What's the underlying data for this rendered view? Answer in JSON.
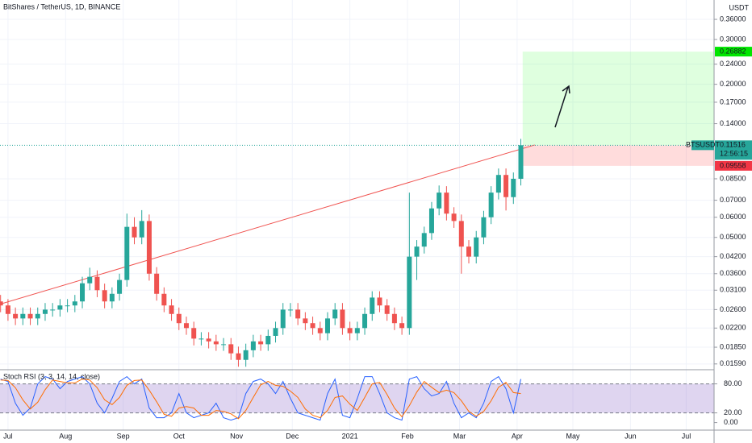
{
  "chart_data": {
    "type": "candlestick",
    "title": "BitShares / TetherUS, 1D, BINANCE",
    "y_unit": "USDT",
    "log_scale": true,
    "grid": true,
    "up_color": "#26a69a",
    "down_color": "#ef5350",
    "x": [
      -4,
      0,
      4,
      8,
      12,
      16,
      20,
      24,
      28,
      32,
      36,
      40,
      44,
      48,
      52,
      56,
      60,
      64,
      68,
      72,
      76,
      80,
      84,
      88,
      92,
      96,
      100,
      104,
      108,
      112,
      116,
      120,
      124,
      128,
      132,
      136,
      140,
      144,
      148,
      152,
      156,
      160,
      164,
      168,
      172,
      176,
      180,
      184,
      188,
      192,
      196,
      200,
      204,
      208,
      212,
      216,
      220,
      224,
      228,
      232,
      236,
      240,
      244,
      248,
      252,
      256,
      260,
      264,
      268,
      272,
      276
    ],
    "open": [
      0.028,
      0.027,
      0.025,
      0.024,
      0.025,
      0.024,
      0.025,
      0.026,
      0.026,
      0.027,
      0.027,
      0.028,
      0.033,
      0.035,
      0.031,
      0.028,
      0.03,
      0.034,
      0.055,
      0.05,
      0.058,
      0.036,
      0.03,
      0.027,
      0.025,
      0.023,
      0.022,
      0.02,
      0.02,
      0.0195,
      0.019,
      0.019,
      0.0175,
      0.0165,
      0.018,
      0.0195,
      0.019,
      0.0205,
      0.022,
      0.026,
      0.026,
      0.024,
      0.023,
      0.022,
      0.021,
      0.024,
      0.026,
      0.022,
      0.021,
      0.022,
      0.025,
      0.029,
      0.027,
      0.025,
      0.023,
      0.022,
      0.042,
      0.046,
      0.052,
      0.065,
      0.075,
      0.062,
      0.058,
      0.046,
      0.042,
      0.05,
      0.06,
      0.075,
      0.088,
      0.072,
      0.085
    ],
    "high": [
      0.0297,
      0.0286,
      0.0265,
      0.0265,
      0.0265,
      0.0265,
      0.0276,
      0.0276,
      0.0286,
      0.0286,
      0.0297,
      0.035,
      0.038,
      0.0371,
      0.0329,
      0.0318,
      0.036,
      0.062,
      0.06,
      0.064,
      0.0615,
      0.0382,
      0.0318,
      0.0286,
      0.0265,
      0.0244,
      0.0233,
      0.0212,
      0.0212,
      0.0207,
      0.0201,
      0.0201,
      0.0186,
      0.0191,
      0.0207,
      0.0207,
      0.0217,
      0.0233,
      0.0276,
      0.0276,
      0.0276,
      0.0254,
      0.0244,
      0.0233,
      0.0254,
      0.0276,
      0.0276,
      0.0233,
      0.0233,
      0.0265,
      0.0307,
      0.0307,
      0.0286,
      0.0265,
      0.0244,
      0.075,
      0.0488,
      0.0551,
      0.0689,
      0.08,
      0.0795,
      0.0657,
      0.0615,
      0.0488,
      0.053,
      0.0636,
      0.0795,
      0.0933,
      0.0933,
      0.09,
      0.122
    ],
    "low": [
      0.0254,
      0.0235,
      0.0226,
      0.0226,
      0.0226,
      0.0226,
      0.0235,
      0.0244,
      0.0244,
      0.0254,
      0.0254,
      0.0263,
      0.031,
      0.0291,
      0.0263,
      0.0263,
      0.0282,
      0.032,
      0.047,
      0.047,
      0.0338,
      0.0282,
      0.0254,
      0.0235,
      0.0216,
      0.0207,
      0.0188,
      0.0188,
      0.0183,
      0.0179,
      0.0179,
      0.0165,
      0.0155,
      0.0155,
      0.0169,
      0.0179,
      0.0179,
      0.0193,
      0.0207,
      0.0244,
      0.0226,
      0.0216,
      0.0207,
      0.0197,
      0.0197,
      0.0226,
      0.0207,
      0.0197,
      0.0197,
      0.0207,
      0.0235,
      0.0254,
      0.0235,
      0.0216,
      0.0207,
      0.0207,
      0.034,
      0.0432,
      0.0489,
      0.0611,
      0.0583,
      0.0545,
      0.036,
      0.0395,
      0.0395,
      0.047,
      0.0564,
      0.0705,
      0.0638,
      0.0677,
      0.08
    ],
    "close": [
      0.027,
      0.025,
      0.024,
      0.025,
      0.024,
      0.025,
      0.026,
      0.026,
      0.027,
      0.027,
      0.028,
      0.033,
      0.035,
      0.031,
      0.028,
      0.03,
      0.034,
      0.055,
      0.05,
      0.058,
      0.036,
      0.03,
      0.027,
      0.025,
      0.023,
      0.022,
      0.02,
      0.02,
      0.0195,
      0.019,
      0.019,
      0.0175,
      0.0165,
      0.018,
      0.0195,
      0.019,
      0.0205,
      0.022,
      0.026,
      0.026,
      0.024,
      0.023,
      0.022,
      0.021,
      0.024,
      0.026,
      0.022,
      0.021,
      0.022,
      0.025,
      0.029,
      0.027,
      0.025,
      0.023,
      0.022,
      0.042,
      0.046,
      0.052,
      0.065,
      0.075,
      0.062,
      0.058,
      0.046,
      0.042,
      0.05,
      0.06,
      0.075,
      0.088,
      0.072,
      0.085,
      0.1152
    ],
    "xlim": [
      -4.3,
      380
    ],
    "xticks": [
      {
        "value": 0,
        "label": "Jul"
      },
      {
        "value": 31,
        "label": "Aug"
      },
      {
        "value": 62,
        "label": "Sep"
      },
      {
        "value": 92,
        "label": "Oct"
      },
      {
        "value": 123,
        "label": "Nov"
      },
      {
        "value": 153,
        "label": "Dec"
      },
      {
        "value": 184,
        "label": "2021"
      },
      {
        "value": 215,
        "label": "Feb"
      },
      {
        "value": 243,
        "label": "Mar"
      },
      {
        "value": 274,
        "label": "Apr"
      },
      {
        "value": 304,
        "label": "May"
      },
      {
        "value": 335,
        "label": "Jun"
      },
      {
        "value": 365,
        "label": "Jul"
      }
    ],
    "ylim": [
      0.0152,
      0.429
    ],
    "yticks": [
      {
        "value": 0.36,
        "label": "0.36000"
      },
      {
        "value": 0.3,
        "label": "0.30000"
      },
      {
        "value": 0.24,
        "label": "0.24000"
      },
      {
        "value": 0.2,
        "label": "0.20000"
      },
      {
        "value": 0.17,
        "label": "0.17000"
      },
      {
        "value": 0.14,
        "label": "0.14000"
      },
      {
        "value": 0.085,
        "label": "0.08500"
      },
      {
        "value": 0.07,
        "label": "0.07000"
      },
      {
        "value": 0.06,
        "label": "0.06000"
      },
      {
        "value": 0.05,
        "label": "0.05000"
      },
      {
        "value": 0.042,
        "label": "0.04200"
      },
      {
        "value": 0.036,
        "label": "0.03600"
      },
      {
        "value": 0.031,
        "label": "0.03100"
      },
      {
        "value": 0.026,
        "label": "0.02600"
      },
      {
        "value": 0.022,
        "label": "0.02200"
      },
      {
        "value": 0.0185,
        "label": "0.01850"
      },
      {
        "value": 0.0159,
        "label": "0.01590"
      }
    ],
    "trendline": {
      "x": [
        -4.3,
        283.5
      ],
      "y": [
        0.0273,
        0.1155
      ],
      "color": "#f05350"
    },
    "position": {
      "x": [
        277,
        380
      ],
      "entry": 0.11516,
      "target": 0.26882,
      "stop": 0.09558
    },
    "last_price": {
      "symbol": "BTSUSDT",
      "value": 0.11516,
      "countdown": "12:56:15",
      "color": "#26a69a"
    },
    "levels": [
      0.11432
    ],
    "indicator": {
      "type": "line",
      "title": "Stoch RSI (3, 3, 14, 14, close)",
      "ylim": [
        -14,
        106
      ],
      "yticks": [
        {
          "value": 0,
          "label": "0.00"
        },
        {
          "value": 20,
          "label": "20.00"
        },
        {
          "value": 80,
          "label": "80.00"
        }
      ],
      "band": [
        20,
        80
      ],
      "series": [
        {
          "color": "#2962ff",
          "values": [
            90,
            85,
            40,
            15,
            30,
            80,
            95,
            90,
            70,
            85,
            90,
            95,
            80,
            40,
            20,
            50,
            85,
            95,
            80,
            90,
            30,
            10,
            10,
            20,
            60,
            20,
            10,
            15,
            20,
            40,
            10,
            5,
            10,
            60,
            85,
            90,
            80,
            60,
            85,
            50,
            20,
            15,
            10,
            5,
            60,
            90,
            15,
            10,
            50,
            95,
            95,
            60,
            20,
            10,
            5,
            90,
            95,
            70,
            55,
            60,
            85,
            40,
            10,
            20,
            10,
            40,
            85,
            95,
            70,
            20,
            90
          ]
        },
        {
          "color": "#ff6d00",
          "values": [
            88,
            87,
            72,
            47,
            28,
            42,
            68,
            88,
            85,
            82,
            82,
            90,
            88,
            72,
            47,
            37,
            52,
            77,
            87,
            88,
            67,
            43,
            17,
            13,
            30,
            33,
            30,
            15,
            15,
            25,
            23,
            18,
            8,
            25,
            52,
            78,
            85,
            77,
            75,
            65,
            52,
            28,
            15,
            10,
            25,
            52,
            55,
            38,
            25,
            52,
            80,
            83,
            58,
            30,
            12,
            35,
            63,
            85,
            73,
            62,
            67,
            62,
            45,
            23,
            13,
            23,
            45,
            73,
            83,
            62,
            60
          ]
        }
      ]
    }
  }
}
